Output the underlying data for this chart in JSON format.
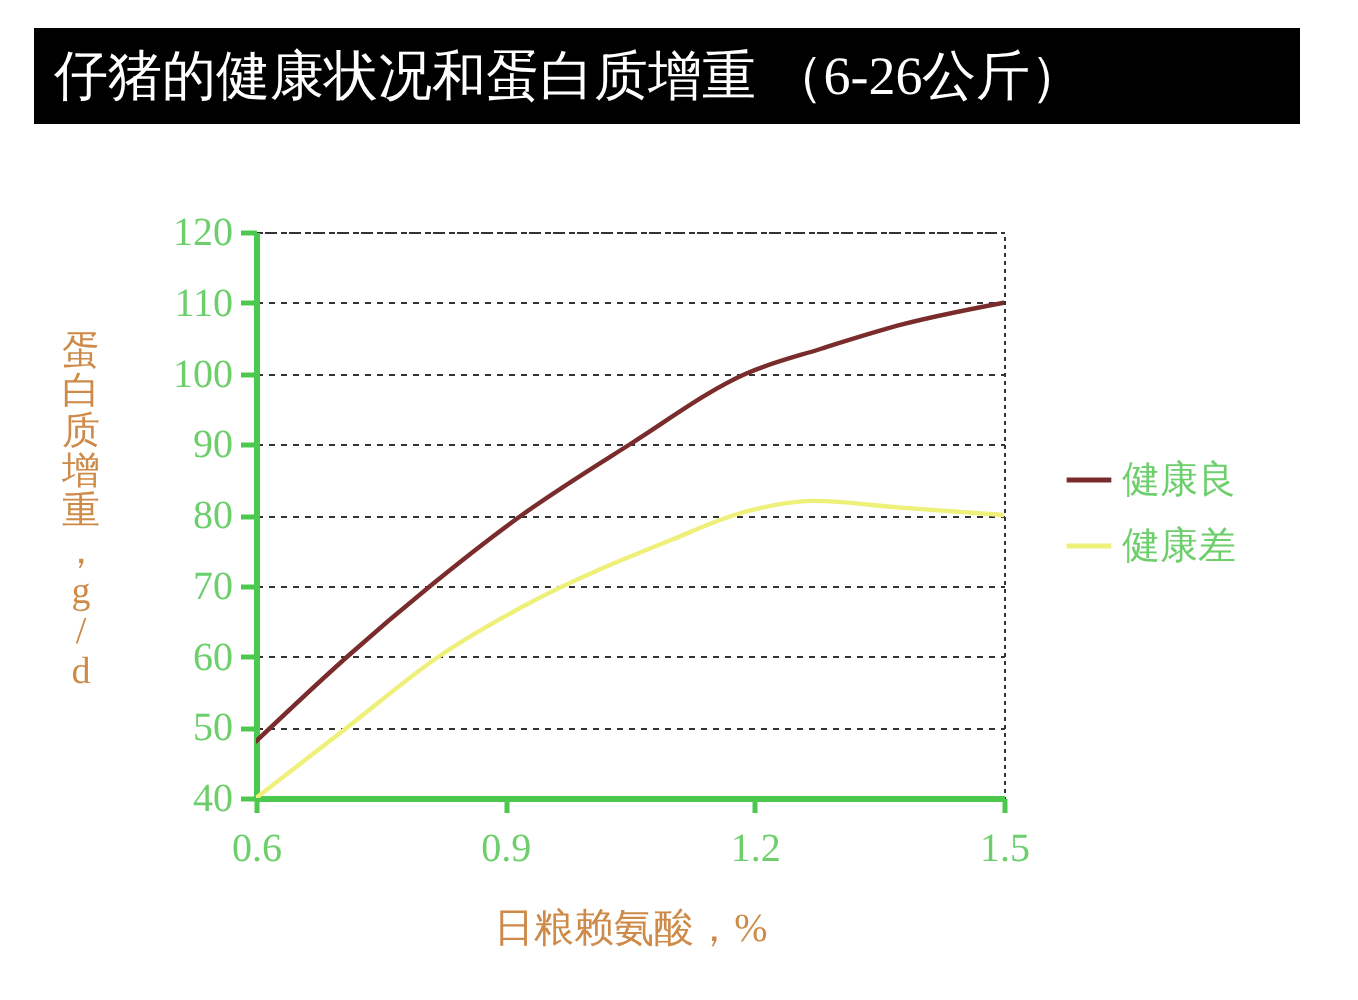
{
  "chart_data": {
    "type": "line",
    "title": "仔猪的健康状况和蛋白质增重 （6-26公斤）",
    "xlabel": "日粮赖氨酸，%",
    "ylabel": "蛋白质增重，g/d",
    "xlim": [
      0.6,
      1.5
    ],
    "xticks": [
      0.6,
      0.9,
      1.2,
      1.5
    ],
    "ylim": [
      40,
      120
    ],
    "yticks": [
      40,
      50,
      60,
      70,
      80,
      90,
      100,
      110,
      120
    ],
    "grid": "y",
    "legend": "right",
    "series": [
      {
        "name": "健康良",
        "color": "#7a2c2c",
        "x": [
          0.6,
          0.71,
          0.81,
          0.92,
          1.05,
          1.19,
          1.28,
          1.38,
          1.5
        ],
        "values": [
          48,
          60,
          70,
          80,
          90,
          100,
          103.5,
          107,
          110
        ]
      },
      {
        "name": "健康差",
        "color": "#eef07a",
        "x": [
          0.6,
          0.71,
          0.82,
          0.92,
          1.1,
          1.19,
          1.27,
          1.38,
          1.5
        ],
        "values": [
          40,
          50,
          60,
          67,
          76.5,
          80.5,
          82,
          81,
          80
        ]
      }
    ]
  }
}
